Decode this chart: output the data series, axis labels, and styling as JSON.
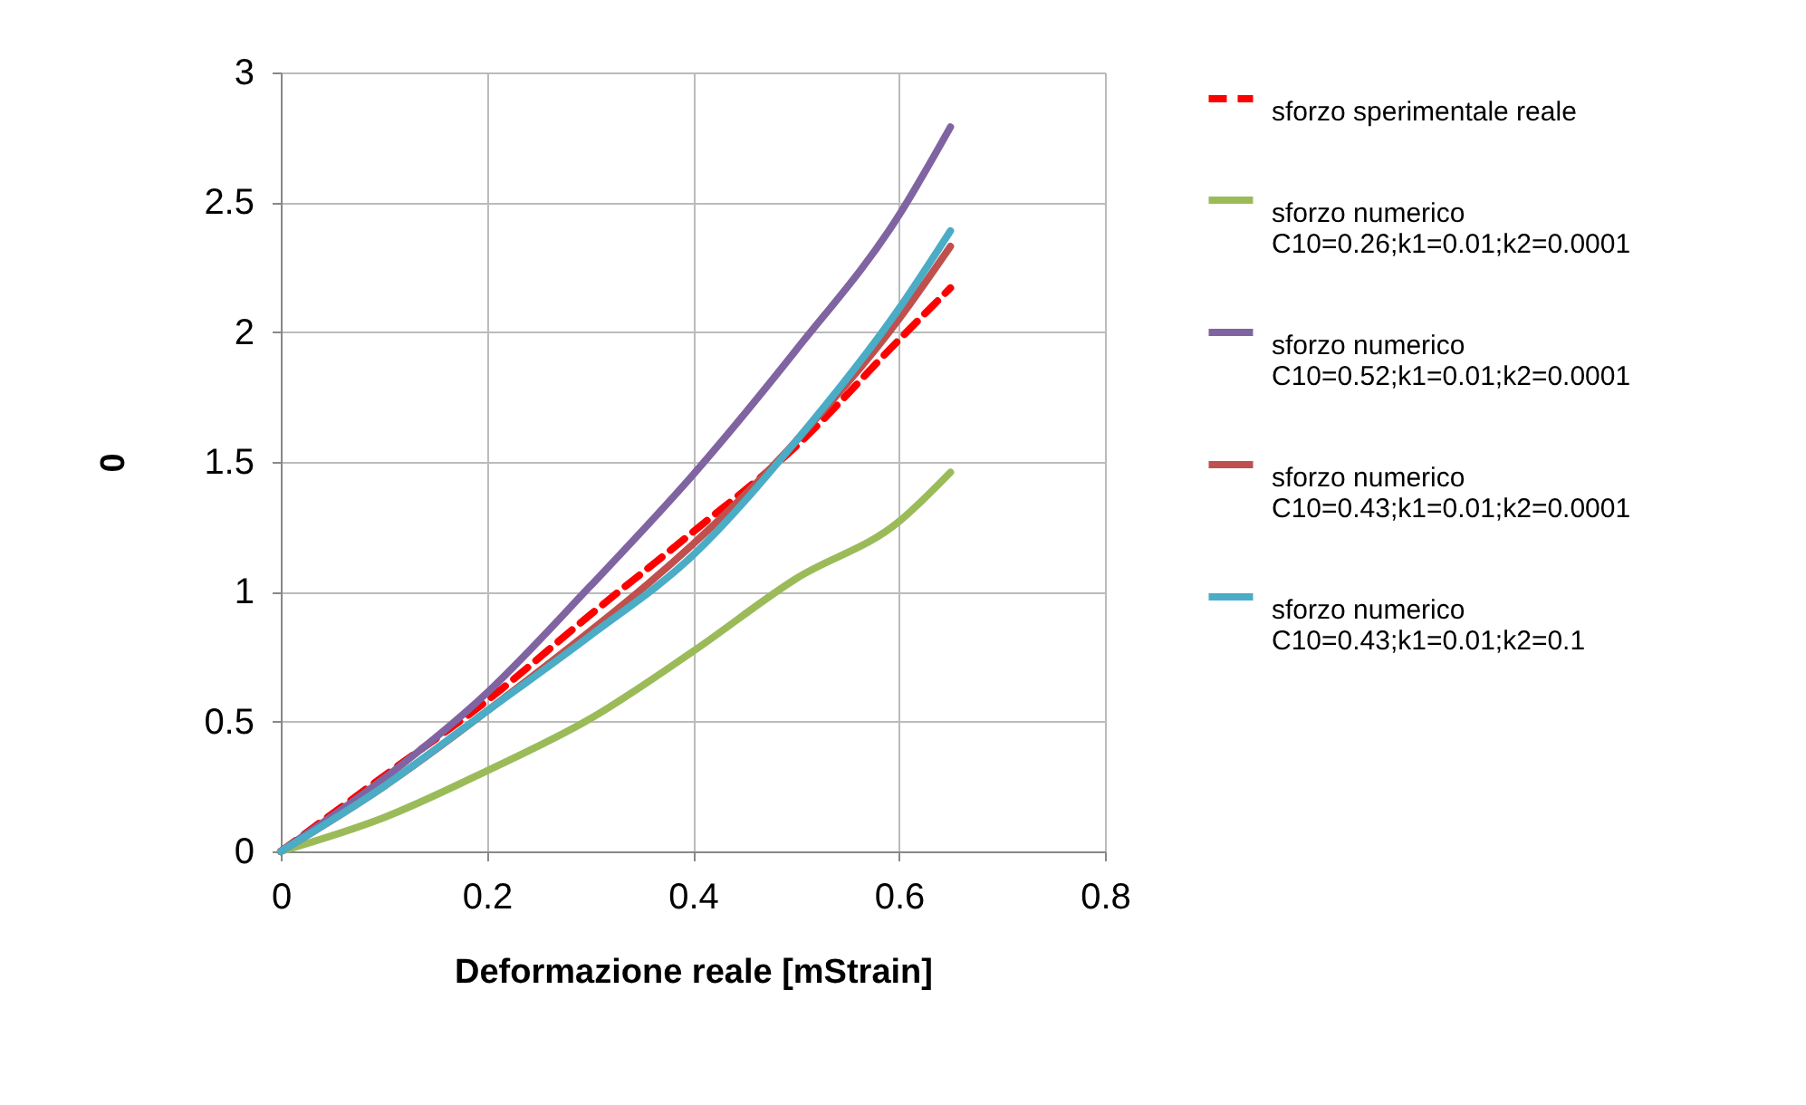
{
  "chart_data": {
    "type": "line",
    "xlabel": "Deformazione reale [mStrain]",
    "ylabel": "0",
    "x": [
      0,
      0.1,
      0.2,
      0.3,
      0.4,
      0.5,
      0.6,
      0.65
    ],
    "series": [
      {
        "name": "sforzo sperimentale reale",
        "color": "#ff0000",
        "line_style": "dashed",
        "values": [
          0,
          0.29,
          0.58,
          0.91,
          1.23,
          1.56,
          1.97,
          2.17
        ]
      },
      {
        "name": "sforzo numerico C10=0.26;k1=0.01;k2=0.0001",
        "color": "#9bbb59",
        "line_style": "solid",
        "values": [
          0,
          0.13,
          0.31,
          0.51,
          0.77,
          1.05,
          1.27,
          1.46
        ]
      },
      {
        "name": "sforzo numerico C10=0.52;k1=0.01;k2=0.0001",
        "color": "#8064a2",
        "line_style": "solid",
        "values": [
          0,
          0.28,
          0.61,
          1.02,
          1.45,
          1.93,
          2.45,
          2.79
        ]
      },
      {
        "name": "sforzo numerico C10=0.43;k1=0.01;k2=0.0001",
        "color": "#c0504d",
        "line_style": "solid",
        "values": [
          0,
          0.25,
          0.54,
          null,
          null,
          1.58,
          2.05,
          2.33
        ]
      },
      {
        "name": "sforzo numerico C10=0.43;k1=0.01;k2=0.1",
        "color": "#4bacc6",
        "line_style": "solid",
        "values": [
          0,
          0.25,
          0.54,
          0.83,
          1.14,
          1.58,
          2.09,
          2.39
        ]
      }
    ],
    "xlim": [
      0,
      0.8
    ],
    "xticks": [
      0,
      0.2,
      0.4,
      0.6,
      0.8
    ],
    "ylim": [
      0,
      3
    ],
    "yticks": [
      0,
      0.5,
      1,
      1.5,
      2,
      2.5,
      3
    ],
    "grid": true,
    "legend": "right",
    "marker": "none"
  }
}
